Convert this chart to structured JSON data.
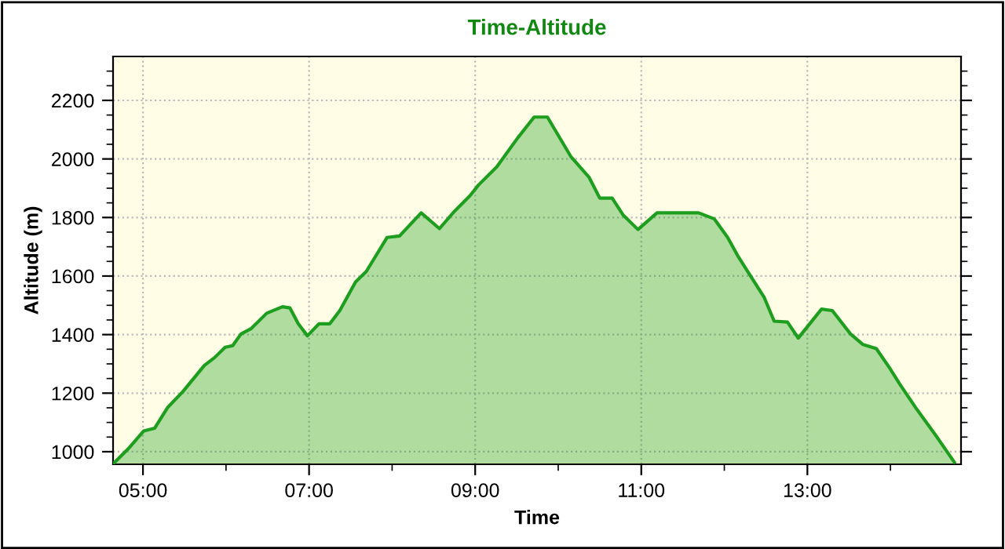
{
  "chart_data": {
    "type": "area",
    "title": "Time-Altitude",
    "xlabel": "Time",
    "ylabel": "Altitude (m)",
    "series": [
      {
        "color": "#1e9e1e",
        "x": [
          4.65,
          4.82,
          5.01,
          5.14,
          5.3,
          5.48,
          5.74,
          5.86,
          5.99,
          6.08,
          6.18,
          6.3,
          6.49,
          6.68,
          6.77,
          6.87,
          6.98,
          7.12,
          7.25,
          7.37,
          7.56,
          7.69,
          7.94,
          8.09,
          8.35,
          8.57,
          8.75,
          8.94,
          9.04,
          9.26,
          9.51,
          9.71,
          9.87,
          10.15,
          10.37,
          10.5,
          10.65,
          10.78,
          10.96,
          11.19,
          11.69,
          11.88,
          12.04,
          12.16,
          12.32,
          12.48,
          12.6,
          12.76,
          12.89,
          13.17,
          13.3,
          13.52,
          13.67,
          13.83,
          13.99,
          14.11,
          14.3,
          14.55,
          14.77
        ],
        "values": [
          961,
          1009,
          1071,
          1080,
          1152,
          1205,
          1295,
          1321,
          1357,
          1362,
          1402,
          1420,
          1473,
          1495,
          1491,
          1437,
          1396,
          1437,
          1437,
          1482,
          1580,
          1616,
          1732,
          1737,
          1816,
          1762,
          1821,
          1875,
          1911,
          1973,
          2071,
          2143,
          2143,
          2009,
          1938,
          1866,
          1866,
          1809,
          1759,
          1816,
          1816,
          1795,
          1732,
          1670,
          1598,
          1527,
          1446,
          1443,
          1388,
          1487,
          1482,
          1402,
          1366,
          1352,
          1286,
          1232,
          1152,
          1054,
          964
        ]
      }
    ],
    "xlim": [
      4.64,
      14.85
    ],
    "ylim": [
      957,
      2350
    ],
    "xticks": [
      {
        "value": 5,
        "label": "05:00"
      },
      {
        "value": 6,
        "label": null
      },
      {
        "value": 7,
        "label": "07:00"
      },
      {
        "value": 8,
        "label": null
      },
      {
        "value": 9,
        "label": "09:00"
      },
      {
        "value": 10,
        "label": null
      },
      {
        "value": 11,
        "label": "11:00"
      },
      {
        "value": 12,
        "label": null
      },
      {
        "value": 13,
        "label": "13:00"
      },
      {
        "value": 14,
        "label": null
      }
    ],
    "yticks": [
      1000,
      {
        "value": 1050,
        "label": null
      },
      {
        "value": 1100,
        "label": null
      },
      {
        "value": 1150,
        "label": null
      },
      1200,
      {
        "value": 1250,
        "label": null
      },
      {
        "value": 1300,
        "label": null
      },
      {
        "value": 1350,
        "label": null
      },
      1400,
      {
        "value": 1450,
        "label": null
      },
      {
        "value": 1500,
        "label": null
      },
      {
        "value": 1550,
        "label": null
      },
      1600,
      {
        "value": 1650,
        "label": null
      },
      {
        "value": 1700,
        "label": null
      },
      {
        "value": 1750,
        "label": null
      },
      1800,
      {
        "value": 1850,
        "label": null
      },
      {
        "value": 1900,
        "label": null
      },
      {
        "value": 1950,
        "label": null
      },
      2000,
      {
        "value": 2050,
        "label": null
      },
      {
        "value": 2100,
        "label": null
      },
      {
        "value": 2150,
        "label": null
      },
      2200,
      {
        "value": 2250,
        "label": null
      },
      {
        "value": 2300,
        "label": null
      }
    ],
    "grid": true,
    "line_style": "solid"
  }
}
